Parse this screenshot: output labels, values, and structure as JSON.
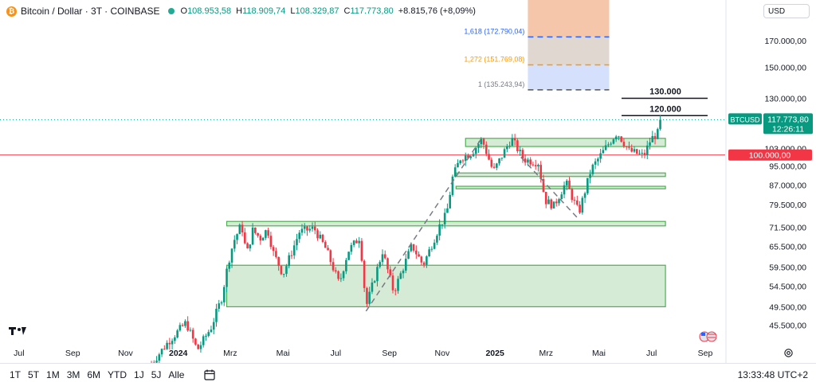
{
  "header": {
    "title": "Bitcoin / Dollar · 3T · COINBASE",
    "open_label": "O",
    "open": "108.953,58",
    "high_label": "H",
    "high": "118.909,74",
    "low_label": "L",
    "low": "108.329,87",
    "close_label": "C",
    "close": "117.773,80",
    "change": "+8.815,76 (+8,09%)"
  },
  "currency_selector": {
    "value": "USD"
  },
  "time_ranges": [
    "1T",
    "5T",
    "1M",
    "3M",
    "6M",
    "YTD",
    "1J",
    "5J",
    "Alle"
  ],
  "clock": "13:33:48 UTC+2",
  "colors": {
    "up": "#089981",
    "down": "#f23645",
    "zone_fill": "#d6ebd6",
    "zone_border": "#4caf50",
    "level_line": "#f23645",
    "fib_top": "#f6c6aa",
    "fib_mid": "#e0d8d0",
    "fib_low": "#d4e0fc"
  },
  "chart_data": {
    "type": "candlestick",
    "symbol": "BTCUSD",
    "y_axis": {
      "scale": "log",
      "range": [
        42000,
        205000
      ],
      "ticks": [
        {
          "value": 45500,
          "label": "45.500,00"
        },
        {
          "value": 49500,
          "label": "49.500,00"
        },
        {
          "value": 54500,
          "label": "54.500,00"
        },
        {
          "value": 59500,
          "label": "59.500,00"
        },
        {
          "value": 65500,
          "label": "65.500,00"
        },
        {
          "value": 71500,
          "label": "71.500,00"
        },
        {
          "value": 79500,
          "label": "79.500,00"
        },
        {
          "value": 87000,
          "label": "87.000,00"
        },
        {
          "value": 95000,
          "label": "95.000,00"
        },
        {
          "value": 103000,
          "label": "103.000,00"
        },
        {
          "value": 130000,
          "label": "130.000,00"
        },
        {
          "value": 150000,
          "label": "150.000,00"
        },
        {
          "value": 170000,
          "label": "170.000,00"
        }
      ]
    },
    "x_axis": {
      "start": "2023-06-09",
      "end": "2025-09-24",
      "ticks": [
        {
          "date": "2023-07-01",
          "label": "Jul",
          "bold": false
        },
        {
          "date": "2023-09-01",
          "label": "Sep",
          "bold": false
        },
        {
          "date": "2023-11-01",
          "label": "Nov",
          "bold": false
        },
        {
          "date": "2024-01-01",
          "label": "2024",
          "bold": true
        },
        {
          "date": "2024-03-01",
          "label": "Mrz",
          "bold": false
        },
        {
          "date": "2024-05-01",
          "label": "Mai",
          "bold": false
        },
        {
          "date": "2024-07-01",
          "label": "Jul",
          "bold": false
        },
        {
          "date": "2024-09-01",
          "label": "Sep",
          "bold": false
        },
        {
          "date": "2024-11-01",
          "label": "Nov",
          "bold": false
        },
        {
          "date": "2025-01-01",
          "label": "2025",
          "bold": true
        },
        {
          "date": "2025-03-01",
          "label": "Mrz",
          "bold": false
        },
        {
          "date": "2025-05-01",
          "label": "Mai",
          "bold": false
        },
        {
          "date": "2025-07-01",
          "label": "Jul",
          "bold": false
        },
        {
          "date": "2025-09-01",
          "label": "Sep",
          "bold": false
        }
      ]
    },
    "price_path": [
      [
        "2023-12-01",
        38000
      ],
      [
        "2023-12-20",
        42000
      ],
      [
        "2024-01-10",
        46000
      ],
      [
        "2024-01-23",
        40500
      ],
      [
        "2024-02-08",
        45000
      ],
      [
        "2024-02-20",
        51500
      ],
      [
        "2024-02-28",
        61000
      ],
      [
        "2024-03-05",
        67000
      ],
      [
        "2024-03-14",
        72500
      ],
      [
        "2024-03-20",
        63000
      ],
      [
        "2024-03-27",
        70500
      ],
      [
        "2024-04-05",
        68000
      ],
      [
        "2024-04-13",
        71000
      ],
      [
        "2024-04-20",
        63500
      ],
      [
        "2024-05-01",
        57500
      ],
      [
        "2024-05-20",
        70000
      ],
      [
        "2024-06-06",
        71200
      ],
      [
        "2024-06-20",
        64500
      ],
      [
        "2024-07-05",
        55000
      ],
      [
        "2024-07-15",
        64000
      ],
      [
        "2024-07-29",
        68500
      ],
      [
        "2024-08-05",
        49500
      ],
      [
        "2024-08-24",
        64000
      ],
      [
        "2024-09-06",
        53000
      ],
      [
        "2024-09-27",
        65800
      ],
      [
        "2024-10-10",
        60000
      ],
      [
        "2024-10-29",
        72000
      ],
      [
        "2024-11-06",
        76000
      ],
      [
        "2024-11-13",
        90000
      ],
      [
        "2024-11-22",
        98500
      ],
      [
        "2024-12-05",
        101000
      ],
      [
        "2024-12-17",
        107500
      ],
      [
        "2024-12-30",
        92500
      ],
      [
        "2025-01-20",
        108000
      ],
      [
        "2025-02-03",
        98000
      ],
      [
        "2025-02-20",
        96500
      ],
      [
        "2025-02-28",
        81000
      ],
      [
        "2025-03-10",
        79000
      ],
      [
        "2025-03-24",
        88000
      ],
      [
        "2025-04-08",
        76500
      ],
      [
        "2025-04-22",
        93500
      ],
      [
        "2025-05-10",
        104000
      ],
      [
        "2025-05-22",
        111000
      ],
      [
        "2025-06-05",
        102000
      ],
      [
        "2025-06-22",
        99500
      ],
      [
        "2025-06-30",
        107500
      ],
      [
        "2025-07-09",
        111000
      ],
      [
        "2025-07-11",
        117773.8
      ]
    ],
    "last_price": {
      "symbol": "BTCUSD",
      "value": 117773.8,
      "label": "117.773,80",
      "countdown": "12:26:11"
    },
    "horizontal_line": {
      "value": 100000,
      "label": "100.000,00"
    },
    "target_lines": [
      {
        "value": 130000,
        "label": "130.000"
      },
      {
        "value": 120000,
        "label": "120.000"
      }
    ],
    "fib_levels": [
      {
        "ratio": "1,618",
        "value": 172790.04,
        "label": "1,618 (172.790,04)",
        "color": "#2962ff"
      },
      {
        "ratio": "1,272",
        "value": 151769.08,
        "label": "1,272 (151.769,08)",
        "color": "#ff9800"
      },
      {
        "ratio": "1",
        "value": 135243.94,
        "label": "1 (135.243,94)",
        "color": "#787b86"
      }
    ],
    "fib_box": {
      "date_start": "2025-02-08",
      "date_end": "2025-05-13",
      "top": 205000
    },
    "zones": [
      {
        "name": "support-zone-large",
        "date_start": "2024-02-26",
        "date_end": "2025-07-17",
        "low": 49500,
        "high": 60000
      },
      {
        "name": "support-zone-71k",
        "date_start": "2024-02-26",
        "date_end": "2025-07-17",
        "low": 72000,
        "high": 73500
      },
      {
        "name": "zone-86k",
        "date_start": "2024-11-17",
        "date_end": "2025-07-17",
        "low": 85500,
        "high": 86500
      },
      {
        "name": "zone-91k",
        "date_start": "2024-11-17",
        "date_end": "2025-07-17",
        "low": 90500,
        "high": 92000
      },
      {
        "name": "resistance-zone-106k",
        "date_start": "2024-11-28",
        "date_end": "2025-07-17",
        "low": 104000,
        "high": 108000
      }
    ],
    "trend_lines": [
      {
        "from": [
          "2024-08-05",
          48500
        ],
        "to": [
          "2024-12-18",
          109000
        ]
      },
      {
        "from": [
          "2025-01-31",
          99000
        ],
        "to": [
          "2025-04-07",
          74500
        ]
      }
    ]
  }
}
